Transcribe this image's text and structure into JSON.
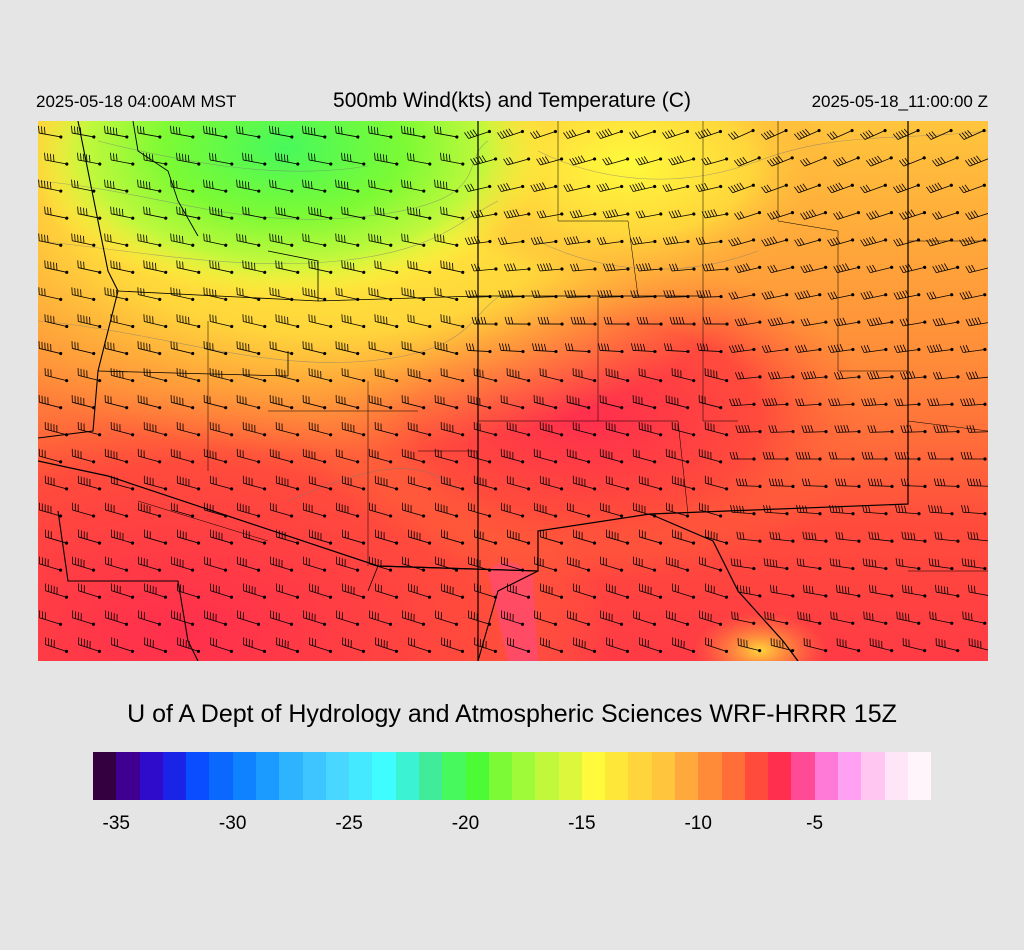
{
  "header": {
    "local_time": "2025-05-18 04:00AM MST",
    "title": "500mb Wind(kts) and Temperature (C)",
    "utc_time": "2025-05-18_11:00:00 Z"
  },
  "footer": {
    "title": "U of A Dept of Hydrology and Atmospheric Sciences WRF-HRRR 15Z"
  },
  "colorbar": {
    "min": -36,
    "max": -1,
    "colors": [
      "#34003f",
      "#3f0092",
      "#2f0ccb",
      "#1a24e6",
      "#0a4cff",
      "#0b68ff",
      "#0f82ff",
      "#1b9aff",
      "#2eb3ff",
      "#3ec5ff",
      "#47d7ff",
      "#45e9ff",
      "#3ffcff",
      "#3bf3d3",
      "#40ec99",
      "#47f95c",
      "#4cfb35",
      "#7cfa35",
      "#9ffa3a",
      "#c1f83c",
      "#ddf73d",
      "#fffa3c",
      "#ffe73a",
      "#ffd53b",
      "#ffc53c",
      "#ffa93c",
      "#ff8b39",
      "#ff6d38",
      "#ff4b3c",
      "#ff2f4d",
      "#ff4a95",
      "#ff79d6",
      "#ffa1f3",
      "#ffc6f2",
      "#ffe5f8",
      "#fff5fb"
    ],
    "ticks": [
      {
        "label": "-35",
        "value": -35
      },
      {
        "label": "-30",
        "value": -30
      },
      {
        "label": "-25",
        "value": -25
      },
      {
        "label": "-20",
        "value": -20
      },
      {
        "label": "-15",
        "value": -15
      },
      {
        "label": "-10",
        "value": -10
      },
      {
        "label": "-5",
        "value": -5
      }
    ]
  },
  "map": {
    "field_description": "500mb temperature shaded, wind barbs in knots, southwestern United States",
    "wind_speeds_kts": [
      30,
      40,
      45,
      50,
      60
    ]
  }
}
